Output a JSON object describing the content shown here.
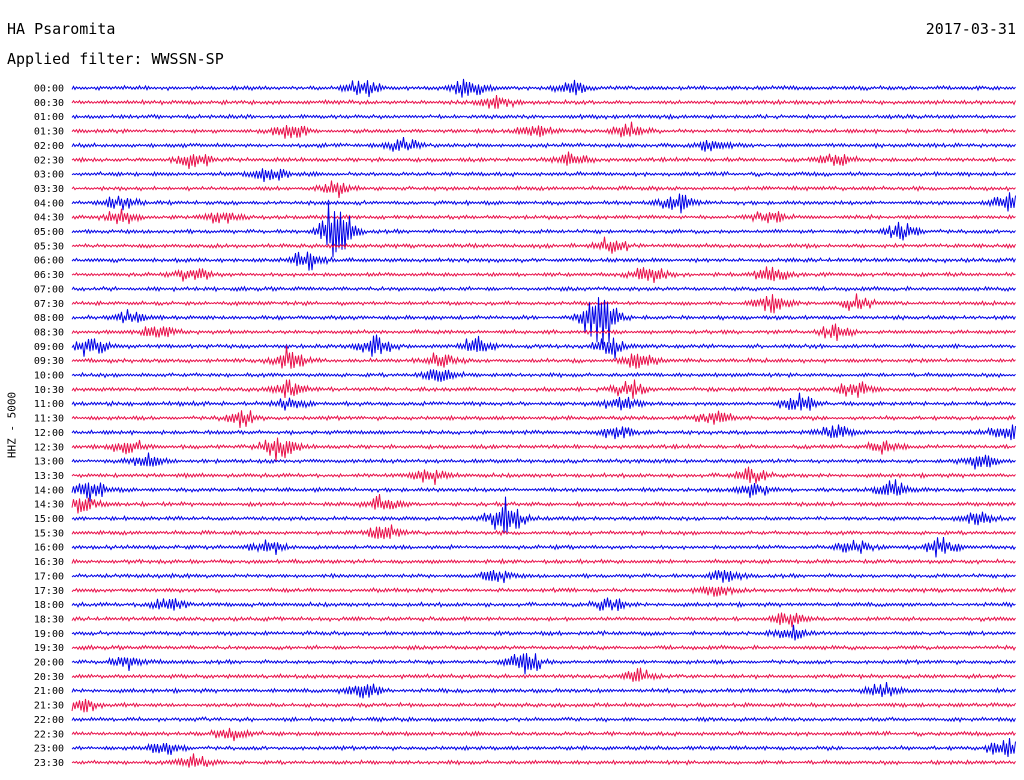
{
  "header": {
    "station": "HA Psaromita",
    "date": "2017-03-31",
    "filter": "Applied filter: WWSSN-SP"
  },
  "chart_data": {
    "type": "line",
    "title": "HA Psaromita",
    "ylabel": "HHZ - 5000",
    "row_labels": [
      "00:00",
      "00:30",
      "01:00",
      "01:30",
      "02:00",
      "02:30",
      "03:00",
      "03:30",
      "04:00",
      "04:30",
      "05:00",
      "05:30",
      "06:00",
      "06:30",
      "07:00",
      "07:30",
      "08:00",
      "08:30",
      "09:00",
      "09:30",
      "10:00",
      "10:30",
      "11:00",
      "11:30",
      "12:00",
      "12:30",
      "13:00",
      "13:30",
      "14:00",
      "14:30",
      "15:00",
      "15:30",
      "16:00",
      "16:30",
      "17:00",
      "17:30",
      "18:00",
      "18:30",
      "19:00",
      "19:30",
      "20:00",
      "20:30",
      "21:00",
      "21:30",
      "22:00",
      "22:30",
      "23:00",
      "23:30"
    ],
    "colors": [
      "#0000e6",
      "#e8104a"
    ],
    "events": [
      {
        "row": 0,
        "pos": 0.31,
        "amp": 0.55
      },
      {
        "row": 0,
        "pos": 0.42,
        "amp": 0.5
      },
      {
        "row": 0,
        "pos": 0.53,
        "amp": 0.45
      },
      {
        "row": 1,
        "pos": 0.45,
        "amp": 0.35
      },
      {
        "row": 3,
        "pos": 0.23,
        "amp": 0.5
      },
      {
        "row": 3,
        "pos": 0.49,
        "amp": 0.4
      },
      {
        "row": 3,
        "pos": 0.59,
        "amp": 0.4
      },
      {
        "row": 4,
        "pos": 0.35,
        "amp": 0.35
      },
      {
        "row": 4,
        "pos": 0.68,
        "amp": 0.4
      },
      {
        "row": 5,
        "pos": 0.13,
        "amp": 0.5
      },
      {
        "row": 5,
        "pos": 0.53,
        "amp": 0.45
      },
      {
        "row": 5,
        "pos": 0.81,
        "amp": 0.5
      },
      {
        "row": 6,
        "pos": 0.21,
        "amp": 0.45
      },
      {
        "row": 7,
        "pos": 0.28,
        "amp": 0.4
      },
      {
        "row": 8,
        "pos": 0.05,
        "amp": 0.4
      },
      {
        "row": 8,
        "pos": 0.64,
        "amp": 0.5
      },
      {
        "row": 8,
        "pos": 0.99,
        "amp": 0.5
      },
      {
        "row": 9,
        "pos": 0.05,
        "amp": 0.4
      },
      {
        "row": 9,
        "pos": 0.16,
        "amp": 0.4
      },
      {
        "row": 9,
        "pos": 0.74,
        "amp": 0.4
      },
      {
        "row": 10,
        "pos": 0.28,
        "amp": 1.6
      },
      {
        "row": 10,
        "pos": 0.88,
        "amp": 0.5
      },
      {
        "row": 11,
        "pos": 0.57,
        "amp": 0.45
      },
      {
        "row": 12,
        "pos": 0.25,
        "amp": 0.6
      },
      {
        "row": 13,
        "pos": 0.13,
        "amp": 0.45
      },
      {
        "row": 13,
        "pos": 0.61,
        "amp": 0.55
      },
      {
        "row": 13,
        "pos": 0.74,
        "amp": 0.45
      },
      {
        "row": 15,
        "pos": 0.74,
        "amp": 0.5
      },
      {
        "row": 15,
        "pos": 0.83,
        "amp": 0.45
      },
      {
        "row": 16,
        "pos": 0.06,
        "amp": 0.4
      },
      {
        "row": 16,
        "pos": 0.56,
        "amp": 1.9
      },
      {
        "row": 17,
        "pos": 0.09,
        "amp": 0.4
      },
      {
        "row": 17,
        "pos": 0.81,
        "amp": 0.45
      },
      {
        "row": 18,
        "pos": 0.02,
        "amp": 0.55
      },
      {
        "row": 18,
        "pos": 0.32,
        "amp": 0.6
      },
      {
        "row": 18,
        "pos": 0.43,
        "amp": 0.5
      },
      {
        "row": 18,
        "pos": 0.57,
        "amp": 0.55
      },
      {
        "row": 19,
        "pos": 0.23,
        "amp": 0.7
      },
      {
        "row": 19,
        "pos": 0.39,
        "amp": 0.5
      },
      {
        "row": 19,
        "pos": 0.6,
        "amp": 0.5
      },
      {
        "row": 20,
        "pos": 0.39,
        "amp": 0.4
      },
      {
        "row": 21,
        "pos": 0.23,
        "amp": 0.5
      },
      {
        "row": 21,
        "pos": 0.59,
        "amp": 0.45
      },
      {
        "row": 21,
        "pos": 0.83,
        "amp": 0.5
      },
      {
        "row": 22,
        "pos": 0.23,
        "amp": 0.4
      },
      {
        "row": 22,
        "pos": 0.58,
        "amp": 0.45
      },
      {
        "row": 22,
        "pos": 0.77,
        "amp": 0.6
      },
      {
        "row": 23,
        "pos": 0.18,
        "amp": 0.45
      },
      {
        "row": 23,
        "pos": 0.68,
        "amp": 0.4
      },
      {
        "row": 24,
        "pos": 0.58,
        "amp": 0.4
      },
      {
        "row": 24,
        "pos": 0.81,
        "amp": 0.5
      },
      {
        "row": 24,
        "pos": 0.99,
        "amp": 0.5
      },
      {
        "row": 25,
        "pos": 0.06,
        "amp": 0.4
      },
      {
        "row": 25,
        "pos": 0.22,
        "amp": 0.75
      },
      {
        "row": 25,
        "pos": 0.86,
        "amp": 0.4
      },
      {
        "row": 26,
        "pos": 0.08,
        "amp": 0.4
      },
      {
        "row": 26,
        "pos": 0.96,
        "amp": 0.45
      },
      {
        "row": 27,
        "pos": 0.38,
        "amp": 0.4
      },
      {
        "row": 27,
        "pos": 0.72,
        "amp": 0.4
      },
      {
        "row": 28,
        "pos": 0.02,
        "amp": 0.6
      },
      {
        "row": 28,
        "pos": 0.72,
        "amp": 0.45
      },
      {
        "row": 28,
        "pos": 0.87,
        "amp": 0.5
      },
      {
        "row": 29,
        "pos": 0.01,
        "amp": 0.55
      },
      {
        "row": 29,
        "pos": 0.33,
        "amp": 0.45
      },
      {
        "row": 30,
        "pos": 0.46,
        "amp": 1.2
      },
      {
        "row": 30,
        "pos": 0.96,
        "amp": 0.4
      },
      {
        "row": 31,
        "pos": 0.33,
        "amp": 0.45
      },
      {
        "row": 32,
        "pos": 0.21,
        "amp": 0.45
      },
      {
        "row": 32,
        "pos": 0.83,
        "amp": 0.45
      },
      {
        "row": 32,
        "pos": 0.92,
        "amp": 0.5
      },
      {
        "row": 34,
        "pos": 0.45,
        "amp": 0.35
      },
      {
        "row": 34,
        "pos": 0.69,
        "amp": 0.4
      },
      {
        "row": 35,
        "pos": 0.68,
        "amp": 0.4
      },
      {
        "row": 36,
        "pos": 0.1,
        "amp": 0.45
      },
      {
        "row": 36,
        "pos": 0.57,
        "amp": 0.4
      },
      {
        "row": 37,
        "pos": 0.76,
        "amp": 0.4
      },
      {
        "row": 38,
        "pos": 0.76,
        "amp": 0.4
      },
      {
        "row": 40,
        "pos": 0.06,
        "amp": 0.4
      },
      {
        "row": 40,
        "pos": 0.48,
        "amp": 0.7
      },
      {
        "row": 41,
        "pos": 0.6,
        "amp": 0.4
      },
      {
        "row": 42,
        "pos": 0.31,
        "amp": 0.5
      },
      {
        "row": 42,
        "pos": 0.86,
        "amp": 0.4
      },
      {
        "row": 43,
        "pos": 0.01,
        "amp": 0.45
      },
      {
        "row": 45,
        "pos": 0.17,
        "amp": 0.45
      },
      {
        "row": 46,
        "pos": 0.1,
        "amp": 0.4
      },
      {
        "row": 46,
        "pos": 0.99,
        "amp": 0.55
      },
      {
        "row": 47,
        "pos": 0.13,
        "amp": 0.4
      }
    ]
  }
}
